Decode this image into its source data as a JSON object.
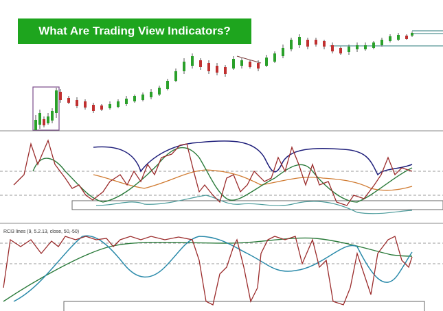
{
  "header": {
    "title": "What Are Trading View Indicators?"
  },
  "indicator": {
    "label": "RCI3 lines (9, 5.2.13, close, 50,-50)"
  }
}
